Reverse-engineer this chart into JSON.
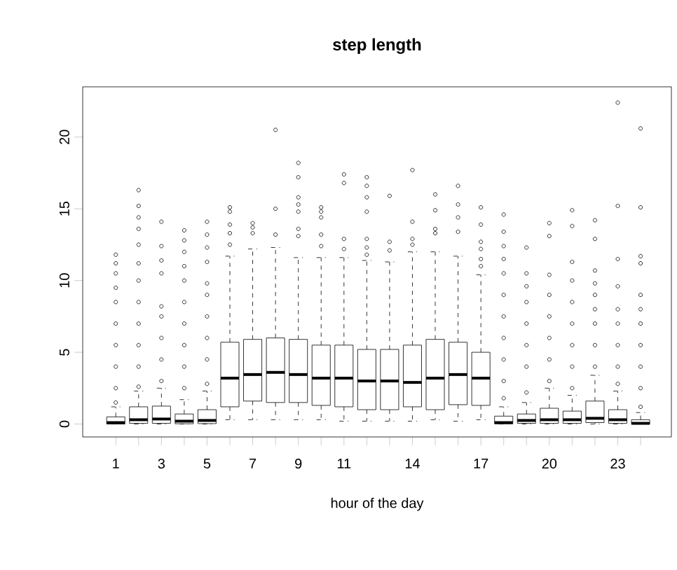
{
  "chart_data": {
    "type": "box",
    "title": "step length",
    "xlabel": "hour of the day",
    "categories": [
      "1",
      null,
      "3",
      null,
      "5",
      null,
      "7",
      null,
      "9",
      null,
      "11",
      null,
      null,
      "14",
      null,
      null,
      "17",
      null,
      null,
      "20",
      null,
      null,
      "23",
      null
    ],
    "ylim": [
      -0.9,
      23.5
    ],
    "yticks": [
      0,
      5,
      10,
      15,
      20
    ],
    "marker": "circle",
    "color": "#000000",
    "boxes": [
      {
        "low": 0,
        "q1": 0,
        "median": 0.1,
        "q3": 0.5,
        "high": 1.2,
        "outliers": [
          1.5,
          2.5,
          4,
          5.5,
          7,
          8.5,
          9.5,
          10.5,
          11.2,
          11.8
        ]
      },
      {
        "low": 0,
        "q1": 0.05,
        "median": 0.3,
        "q3": 1.2,
        "high": 2.3,
        "outliers": [
          2.6,
          4,
          5.5,
          7,
          8.5,
          10,
          11.2,
          12.5,
          13.6,
          14.4,
          15.2,
          16.3
        ]
      },
      {
        "low": 0,
        "q1": 0.05,
        "median": 0.35,
        "q3": 1.25,
        "high": 2.5,
        "outliers": [
          3,
          4.5,
          6,
          7.5,
          8.2,
          10.5,
          11.4,
          12.4,
          14.1
        ]
      },
      {
        "low": 0,
        "q1": 0.02,
        "median": 0.2,
        "q3": 0.7,
        "high": 1.7,
        "outliers": [
          2.5,
          4,
          5.5,
          7,
          8.5,
          10,
          11,
          12,
          12.8,
          13.5
        ]
      },
      {
        "low": 0,
        "q1": 0.03,
        "median": 0.25,
        "q3": 1.0,
        "high": 2.3,
        "outliers": [
          2.8,
          4.5,
          6,
          7.5,
          9,
          9.8,
          11.3,
          12.3,
          13.2,
          14.1
        ]
      },
      {
        "low": 0.3,
        "q1": 1.2,
        "median": 3.2,
        "q3": 5.7,
        "high": 11.7,
        "outliers": [
          12.5,
          13.3,
          13.9,
          14.8,
          15.1
        ]
      },
      {
        "low": 0.3,
        "q1": 1.6,
        "median": 3.45,
        "q3": 5.9,
        "high": 12.2,
        "outliers": [
          13.3,
          13.7,
          14.0
        ]
      },
      {
        "low": 0.3,
        "q1": 1.5,
        "median": 3.6,
        "q3": 6.0,
        "high": 12.3,
        "outliers": [
          13.2,
          15.0,
          20.5
        ]
      },
      {
        "low": 0.3,
        "q1": 1.5,
        "median": 3.45,
        "q3": 5.9,
        "high": 11.6,
        "outliers": [
          13.1,
          13.6,
          14.8,
          15.3,
          15.8,
          17.2,
          18.2
        ]
      },
      {
        "low": 0.3,
        "q1": 1.3,
        "median": 3.2,
        "q3": 5.5,
        "high": 11.6,
        "outliers": [
          12.4,
          13.2,
          14.4,
          14.8,
          15.1
        ]
      },
      {
        "low": 0.2,
        "q1": 1.2,
        "median": 3.2,
        "q3": 5.5,
        "high": 11.6,
        "outliers": [
          12.2,
          12.9,
          16.8,
          17.4
        ]
      },
      {
        "low": 0.2,
        "q1": 1.0,
        "median": 3.0,
        "q3": 5.2,
        "high": 11.4,
        "outliers": [
          11.8,
          12.3,
          12.9,
          14.8,
          15.8,
          16.6,
          17.2
        ]
      },
      {
        "low": 0.2,
        "q1": 1.0,
        "median": 3.0,
        "q3": 5.2,
        "high": 11.3,
        "outliers": [
          12.1,
          12.7,
          15.9
        ]
      },
      {
        "low": 0.2,
        "q1": 1.2,
        "median": 2.9,
        "q3": 5.5,
        "high": 12.0,
        "outliers": [
          12.5,
          12.9,
          14.1,
          17.7
        ]
      },
      {
        "low": 0.3,
        "q1": 1.0,
        "median": 3.2,
        "q3": 5.9,
        "high": 12.0,
        "outliers": [
          13.3,
          13.6,
          14.9,
          16.0
        ]
      },
      {
        "low": 0.2,
        "q1": 1.35,
        "median": 3.45,
        "q3": 5.7,
        "high": 11.7,
        "outliers": [
          13.4,
          14.4,
          15.3,
          16.6
        ]
      },
      {
        "low": 0.3,
        "q1": 1.3,
        "median": 3.2,
        "q3": 5.0,
        "high": 10.4,
        "outliers": [
          11,
          11.5,
          12.2,
          12.7,
          13.9,
          15.1
        ]
      },
      {
        "low": 0,
        "q1": 0.02,
        "median": 0.1,
        "q3": 0.55,
        "high": 1.2,
        "outliers": [
          1.8,
          3,
          4.5,
          6,
          7.5,
          9,
          10.5,
          11.5,
          12.4,
          13.4,
          14.6
        ]
      },
      {
        "low": 0,
        "q1": 0.05,
        "median": 0.25,
        "q3": 0.7,
        "high": 1.5,
        "outliers": [
          2.2,
          4,
          5.5,
          7,
          8.5,
          9.6,
          10.5,
          12.3
        ]
      },
      {
        "low": 0,
        "q1": 0.05,
        "median": 0.3,
        "q3": 1.1,
        "high": 2.5,
        "outliers": [
          3,
          4.5,
          6,
          7.5,
          9,
          10.4,
          13.1,
          14.0
        ]
      },
      {
        "low": 0,
        "q1": 0.05,
        "median": 0.3,
        "q3": 0.9,
        "high": 2.0,
        "outliers": [
          2.5,
          4,
          5.5,
          7,
          8.5,
          10,
          11.3,
          13.8,
          14.9
        ]
      },
      {
        "low": 0,
        "q1": 0.1,
        "median": 0.4,
        "q3": 1.6,
        "high": 3.4,
        "outliers": [
          4,
          5.5,
          7,
          8,
          9,
          9.8,
          10.7,
          12.9,
          14.2
        ]
      },
      {
        "low": 0,
        "q1": 0.05,
        "median": 0.3,
        "q3": 1.0,
        "high": 2.3,
        "outliers": [
          2.8,
          4,
          5.5,
          7,
          8,
          9.6,
          11.5,
          15.2,
          22.4
        ]
      },
      {
        "low": 0,
        "q1": 0,
        "median": 0.05,
        "q3": 0.3,
        "high": 0.8,
        "outliers": [
          1.2,
          2.5,
          4,
          5.5,
          7,
          8,
          9,
          11.2,
          11.7,
          15.1,
          20.6
        ]
      }
    ]
  }
}
